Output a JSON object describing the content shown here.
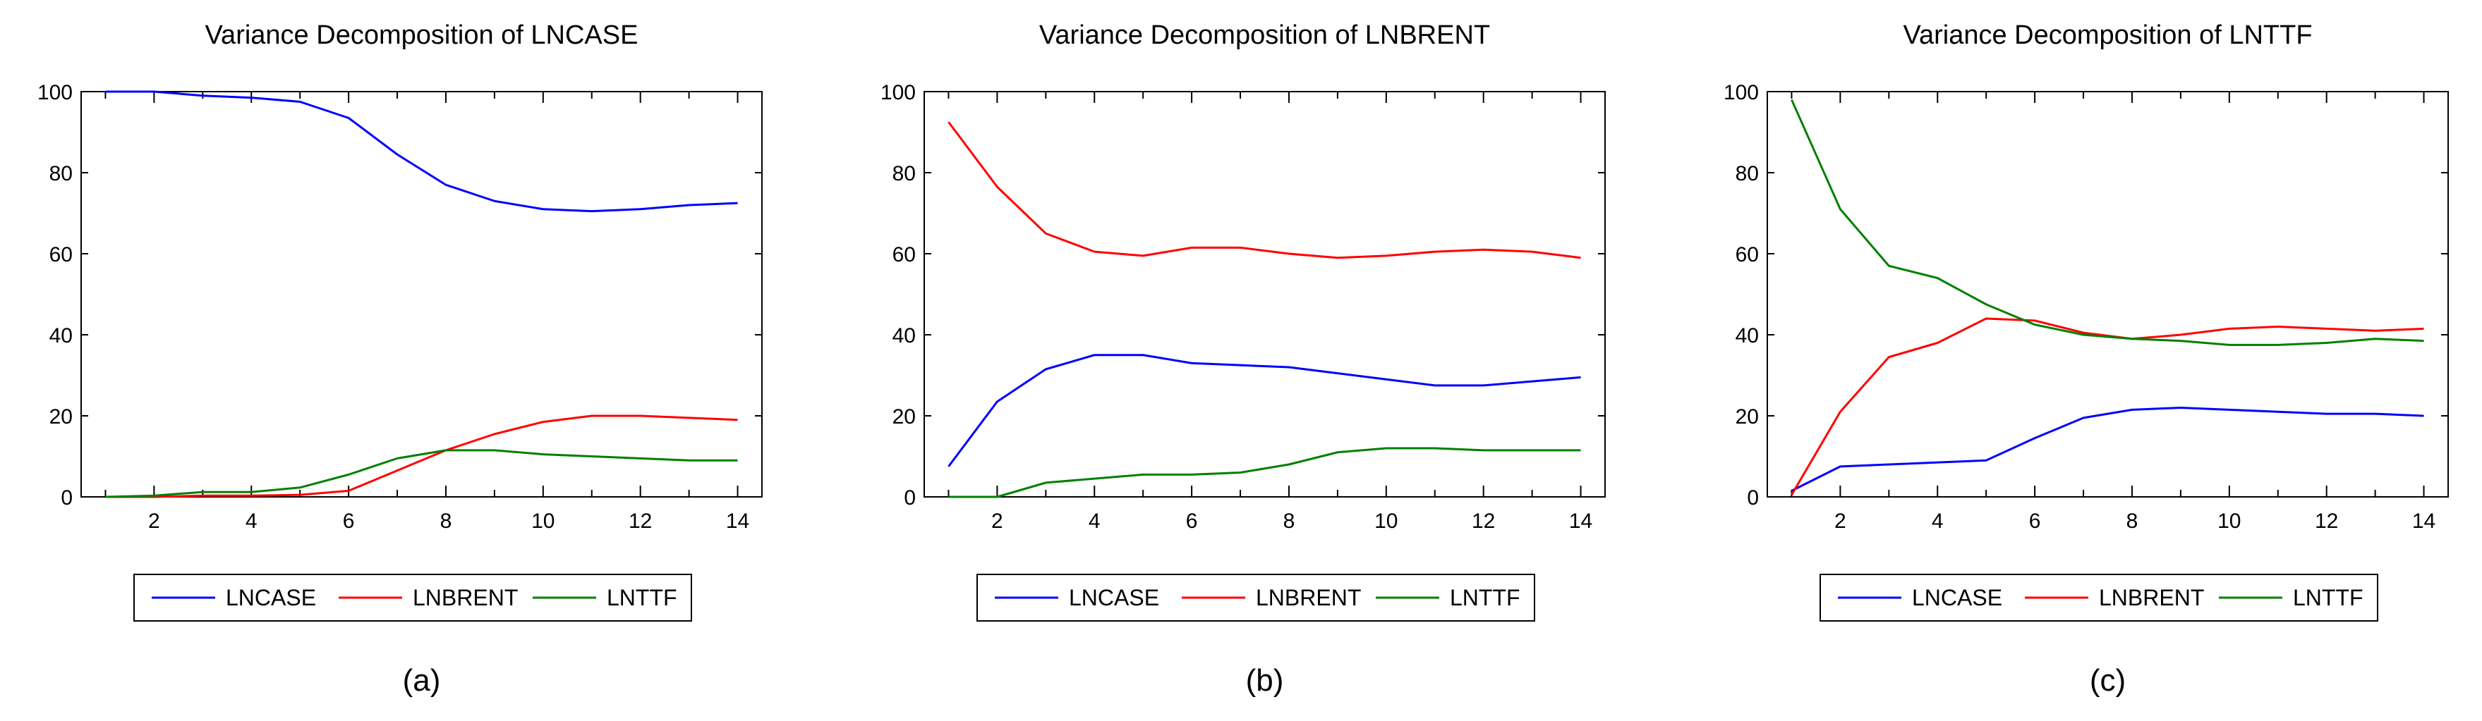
{
  "colors": {
    "LNCASE": "#0000ff",
    "LNBRENT": "#ff0000",
    "LNTTF": "#008000"
  },
  "chart_data": [
    {
      "type": "line",
      "title": "Variance Decomposition of LNCASE",
      "caption": "(a)",
      "xlabel": "",
      "ylabel": "",
      "xlim": [
        0.5,
        14.5
      ],
      "ylim": [
        0,
        100
      ],
      "xticks": [
        2,
        4,
        6,
        8,
        10,
        12,
        14
      ],
      "yticks": [
        0,
        20,
        40,
        60,
        80,
        100
      ],
      "grid": false,
      "legend": "bottom",
      "x": [
        1,
        2,
        3,
        4,
        5,
        6,
        7,
        8,
        9,
        10,
        11,
        12,
        13,
        14
      ],
      "series": [
        {
          "name": "LNCASE",
          "values": [
            100,
            100,
            99,
            98.5,
            97.5,
            93.5,
            84.5,
            77,
            73,
            71,
            70.5,
            71,
            72,
            72.5
          ]
        },
        {
          "name": "LNBRENT",
          "values": [
            0,
            0,
            0.3,
            0.3,
            0.5,
            1.5,
            6.5,
            11.5,
            15.5,
            18.5,
            20,
            20,
            19.5,
            19
          ]
        },
        {
          "name": "LNTTF",
          "values": [
            0,
            0.3,
            1.2,
            1.2,
            2.3,
            5.5,
            9.5,
            11.5,
            11.5,
            10.5,
            10,
            9.5,
            9,
            9
          ]
        }
      ]
    },
    {
      "type": "line",
      "title": "Variance Decomposition of LNBRENT",
      "caption": "(b)",
      "xlabel": "",
      "ylabel": "",
      "xlim": [
        0.5,
        14.5
      ],
      "ylim": [
        0,
        100
      ],
      "xticks": [
        2,
        4,
        6,
        8,
        10,
        12,
        14
      ],
      "yticks": [
        0,
        20,
        40,
        60,
        80,
        100
      ],
      "grid": false,
      "legend": "bottom",
      "x": [
        1,
        2,
        3,
        4,
        5,
        6,
        7,
        8,
        9,
        10,
        11,
        12,
        13,
        14
      ],
      "series": [
        {
          "name": "LNCASE",
          "values": [
            7.5,
            23.5,
            31.5,
            35,
            35,
            33,
            32.5,
            32,
            30.5,
            29,
            27.5,
            27.5,
            28.5,
            29.5
          ]
        },
        {
          "name": "LNBRENT",
          "values": [
            92.5,
            76.5,
            65,
            60.5,
            59.5,
            61.5,
            61.5,
            60,
            59,
            59.5,
            60.5,
            61,
            60.5,
            59
          ]
        },
        {
          "name": "LNTTF",
          "values": [
            0,
            0,
            3.5,
            4.5,
            5.5,
            5.5,
            6,
            8,
            11,
            12,
            12,
            11.5,
            11.5,
            11.5
          ]
        }
      ]
    },
    {
      "type": "line",
      "title": "Variance Decomposition of LNTTF",
      "caption": "(c)",
      "xlabel": "",
      "ylabel": "",
      "xlim": [
        0.5,
        14.5
      ],
      "ylim": [
        0,
        100
      ],
      "xticks": [
        2,
        4,
        6,
        8,
        10,
        12,
        14
      ],
      "yticks": [
        0,
        20,
        40,
        60,
        80,
        100
      ],
      "grid": false,
      "legend": "bottom",
      "x": [
        1,
        2,
        3,
        4,
        5,
        6,
        7,
        8,
        9,
        10,
        11,
        12,
        13,
        14
      ],
      "series": [
        {
          "name": "LNCASE",
          "values": [
            1.5,
            7.5,
            8,
            8.5,
            9,
            14.5,
            19.5,
            21.5,
            22,
            21.5,
            21,
            20.5,
            20.5,
            20
          ]
        },
        {
          "name": "LNBRENT",
          "values": [
            0.5,
            21,
            34.5,
            38,
            44,
            43.5,
            40.5,
            39,
            40,
            41.5,
            42,
            41.5,
            41,
            41.5
          ]
        },
        {
          "name": "LNTTF",
          "values": [
            98,
            71,
            57,
            54,
            47.5,
            42.5,
            40,
            39,
            38.5,
            37.5,
            37.5,
            38,
            39,
            38.5
          ]
        }
      ]
    }
  ]
}
